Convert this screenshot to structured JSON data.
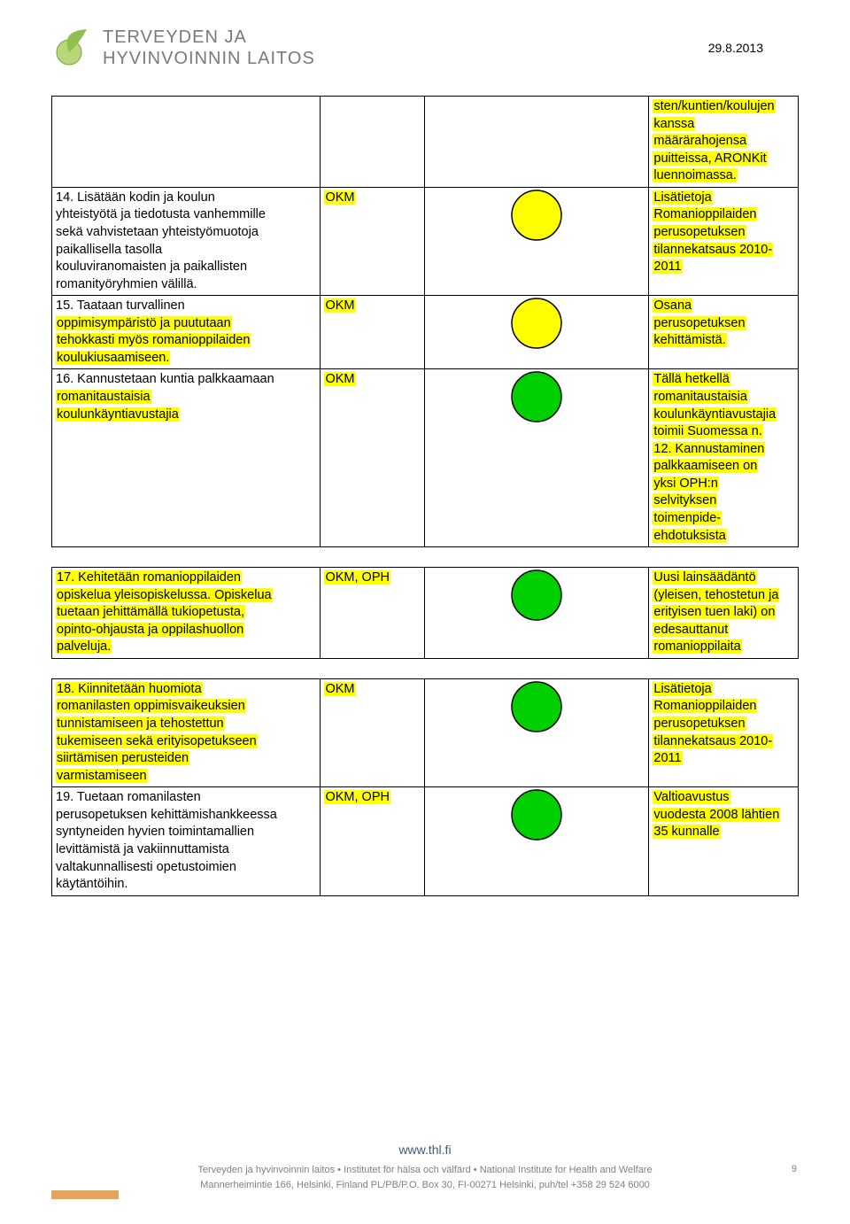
{
  "header": {
    "org_line1": "TERVEYDEN JA",
    "org_line2": "HYVINVOINNIN LAITOS",
    "date": "29.8.2013",
    "logo_colors": {
      "leaf": "#8fbf4d",
      "sphere_light": "#d3e6a5",
      "sphere_dark": "#7aa23c"
    }
  },
  "rows": [
    {
      "col1_segments": [],
      "col2": "",
      "circle_fill": null,
      "col4_segments": [
        {
          "t": "sten/kuntien/koulujen",
          "hl": true
        },
        {
          "t": "kanssa",
          "hl": true
        },
        {
          "t": "määrärahojensa",
          "hl": true
        },
        {
          "t": "puitteissa, ARONKit",
          "hl": true
        },
        {
          "t": "luennoimassa.",
          "hl": true
        }
      ]
    },
    {
      "col1_segments": [
        {
          "t": "14. Lisätään kodin ja koulun",
          "hl": false
        },
        {
          "t": "yhteistyötä ja tiedotusta vanhemmille",
          "hl": false
        },
        {
          "t": "sekä vahvistetaan yhteistyömuotoja",
          "hl": false
        },
        {
          "t": "paikallisella tasolla",
          "hl": false
        },
        {
          "t": "kouluviranomaisten ja paikallisten",
          "hl": false
        },
        {
          "t": "romanityöryhmien välillä.",
          "hl": false
        }
      ],
      "col2": "OKM",
      "circle_fill": "#ffff00",
      "col4_segments": [
        {
          "t": "Lisätietoja",
          "hl": true
        },
        {
          "t": "Romanioppilaiden",
          "hl": true
        },
        {
          "t": "perusopetuksen",
          "hl": true
        },
        {
          "t": "tilannekatsaus 2010-",
          "hl": true
        },
        {
          "t": "2011",
          "hl": true
        }
      ]
    },
    {
      "col1_segments": [
        {
          "t": "15. Taataan turvallinen",
          "hl": false
        },
        {
          "t": "oppimisympäristö ja puututaan",
          "hl": true
        },
        {
          "t": "tehokkasti myös romanioppilaiden",
          "hl": true
        },
        {
          "t": "koulukiusaamiseen.",
          "hl": true
        }
      ],
      "col2": "OKM",
      "circle_fill": "#ffff00",
      "col4_segments": [
        {
          "t": "Osana",
          "hl": true
        },
        {
          "t": "perusopetuksen",
          "hl": true
        },
        {
          "t": "kehittämistä.",
          "hl": true
        }
      ]
    },
    {
      "col1_segments": [
        {
          "t": "16. Kannustetaan kuntia palkkaamaan",
          "hl": false
        },
        {
          "t": "romanitaustaisia",
          "hl": true
        },
        {
          "t": "koulunkäyntiavustajia",
          "hl": true
        }
      ],
      "col2": "OKM",
      "circle_fill": "#00d000",
      "col4_segments": [
        {
          "t": "Tällä hetkellä",
          "hl": true
        },
        {
          "t": "romanitaustaisia",
          "hl": true
        },
        {
          "t": "koulunkäyntiavustajia",
          "hl": true
        },
        {
          "t": "toimii Suomessa n.",
          "hl": true
        },
        {
          "t": "12. Kannustaminen",
          "hl": true
        },
        {
          "t": "palkkaamiseen on",
          "hl": true
        },
        {
          "t": "yksi OPH:n",
          "hl": true
        },
        {
          "t": "selvityksen",
          "hl": true
        },
        {
          "t": "toimenpide-",
          "hl": true
        },
        {
          "t": "ehdotuksista",
          "hl": true
        }
      ]
    },
    {
      "col1_segments": [
        {
          "t": "17. Kehitetään romanioppilaiden",
          "hl": true
        },
        {
          "t": "opiskelua yleisopiskelussa. Opiskelua",
          "hl": true
        },
        {
          "t": "tuetaan jehittämällä tukiopetusta,",
          "hl": true
        },
        {
          "t": "opinto-ohjausta ja oppilashuollon",
          "hl": true
        },
        {
          "t": "palveluja.",
          "hl": true
        }
      ],
      "col2": "OKM, OPH",
      "circle_fill": "#00d000",
      "col4_segments": [
        {
          "t": "Uusi lainsäädäntö",
          "hl": true
        },
        {
          "t": "(yleisen, tehostetun ja",
          "hl": true
        },
        {
          "t": "erityisen tuen laki) on",
          "hl": true
        },
        {
          "t": "edesauttanut",
          "hl": true
        },
        {
          "t": "romanioppilaita",
          "hl": true
        }
      ],
      "gap_before": true
    },
    {
      "col1_segments": [
        {
          "t": "18. Kiinnitetään huomiota",
          "hl": true
        },
        {
          "t": "romanilasten oppimisvaikeuksien",
          "hl": true
        },
        {
          "t": "tunnistamiseen ja tehostettun",
          "hl": true
        },
        {
          "t": "tukemiseen sekä erityisopetukseen",
          "hl": true
        },
        {
          "t": "siirtämisen perusteiden",
          "hl": true
        },
        {
          "t": "varmistamiseen",
          "hl": true
        }
      ],
      "col2": "OKM",
      "circle_fill": "#00d000",
      "col4_segments": [
        {
          "t": "Lisätietoja",
          "hl": true
        },
        {
          "t": "Romanioppilaiden",
          "hl": true
        },
        {
          "t": "perusopetuksen",
          "hl": true
        },
        {
          "t": "tilannekatsaus 2010-",
          "hl": true
        },
        {
          "t": "2011",
          "hl": true
        }
      ],
      "gap_before": true
    },
    {
      "col1_segments": [
        {
          "t": "19. Tuetaan romanilasten",
          "hl": false
        },
        {
          "t": "perusopetuksen kehittämishankkeessa",
          "hl": false
        },
        {
          "t": "syntyneiden hyvien toimintamallien",
          "hl": false
        },
        {
          "t": "levittämistä ja vakiinnuttamista",
          "hl": false
        },
        {
          "t": "valtakunnallisesti opetustoimien",
          "hl": false
        },
        {
          "t": "käytäntöihin.",
          "hl": false
        }
      ],
      "col2": "OKM, OPH",
      "circle_fill": "#00d000",
      "col4_segments": [
        {
          "t": "Valtioavustus",
          "hl": true
        },
        {
          "t": "vuodesta 2008 lähtien",
          "hl": true
        },
        {
          "t": "35 kunnalle",
          "hl": true
        }
      ]
    }
  ],
  "footer": {
    "url": "www.thl.fi",
    "line1": "Terveyden ja hyvinvoinnin laitos • Institutet för hälsa och välfärd • National Institute for Health and Welfare",
    "line2": "Mannerheimintie 166, Helsinki, Finland PL/PB/P.O. Box 30, FI-00271 Helsinki, puh/tel +358 29 524 6000",
    "page_num": "9",
    "accent_color": "#e7a55c"
  }
}
